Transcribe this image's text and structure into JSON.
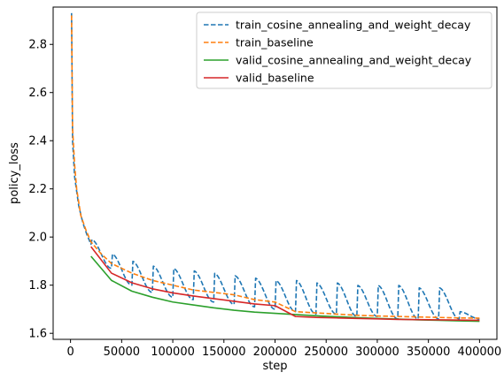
{
  "chart_data": {
    "type": "line",
    "xlabel": "step",
    "ylabel": "policy_loss",
    "xlim": [
      -17000,
      417000
    ],
    "ylim": [
      1.575,
      2.955
    ],
    "xticks": [
      0,
      50000,
      100000,
      150000,
      200000,
      250000,
      300000,
      350000,
      400000
    ],
    "yticks": [
      1.6,
      1.8,
      2.0,
      2.2,
      2.4,
      2.6,
      2.8
    ],
    "grid": false,
    "legend_position": "top-right",
    "series": [
      {
        "name": "train_cosine_annealing_and_weight_decay",
        "color": "#1f77b4",
        "dash": "dashed",
        "kind": "cosine",
        "points": [
          [
            1000,
            2.93
          ],
          [
            2000,
            2.4
          ],
          [
            4000,
            2.25
          ],
          [
            8000,
            2.13
          ],
          [
            12000,
            2.06
          ],
          [
            16000,
            2.01
          ],
          [
            20000,
            1.97
          ]
        ],
        "cosine": {
          "x_start": 20000,
          "x_end": 400000,
          "period": 20000,
          "peaks_x": [
            20000,
            40000,
            60000,
            80000,
            100000,
            120000,
            140000,
            160000,
            180000,
            200000,
            220000,
            240000,
            260000,
            280000,
            300000,
            320000,
            340000,
            360000,
            380000,
            400000
          ],
          "peaks_y": [
            2.11,
            1.99,
            1.93,
            1.9,
            1.88,
            1.87,
            1.86,
            1.85,
            1.84,
            1.83,
            1.82,
            1.82,
            1.81,
            1.81,
            1.8,
            1.8,
            1.8,
            1.79,
            1.79,
            1.69
          ],
          "troughs_y": [
            1.97,
            1.87,
            1.8,
            1.77,
            1.75,
            1.74,
            1.73,
            1.72,
            1.71,
            1.7,
            1.69,
            1.68,
            1.68,
            1.67,
            1.67,
            1.66,
            1.66,
            1.66,
            1.66,
            1.66
          ]
        }
      },
      {
        "name": "train_baseline",
        "color": "#ff7f0e",
        "dash": "dashed",
        "kind": "points",
        "points": [
          [
            1000,
            2.92
          ],
          [
            2000,
            2.45
          ],
          [
            4000,
            2.3
          ],
          [
            6000,
            2.2
          ],
          [
            10000,
            2.09
          ],
          [
            15000,
            2.03
          ],
          [
            20000,
            1.98
          ],
          [
            30000,
            1.93
          ],
          [
            40000,
            1.89
          ],
          [
            60000,
            1.85
          ],
          [
            80000,
            1.82
          ],
          [
            100000,
            1.8
          ],
          [
            120000,
            1.78
          ],
          [
            140000,
            1.77
          ],
          [
            160000,
            1.76
          ],
          [
            180000,
            1.74
          ],
          [
            200000,
            1.73
          ],
          [
            220000,
            1.69
          ],
          [
            240000,
            1.685
          ],
          [
            260000,
            1.68
          ],
          [
            280000,
            1.675
          ],
          [
            300000,
            1.672
          ],
          [
            320000,
            1.67
          ],
          [
            340000,
            1.668
          ],
          [
            360000,
            1.666
          ],
          [
            380000,
            1.664
          ],
          [
            400000,
            1.663
          ]
        ]
      },
      {
        "name": "valid_cosine_annealing_and_weight_decay",
        "color": "#2ca02c",
        "dash": "solid",
        "kind": "points",
        "points": [
          [
            20000,
            1.92
          ],
          [
            40000,
            1.82
          ],
          [
            60000,
            1.775
          ],
          [
            80000,
            1.75
          ],
          [
            100000,
            1.73
          ],
          [
            120000,
            1.718
          ],
          [
            140000,
            1.706
          ],
          [
            160000,
            1.696
          ],
          [
            180000,
            1.688
          ],
          [
            200000,
            1.683
          ],
          [
            220000,
            1.678
          ],
          [
            240000,
            1.673
          ],
          [
            260000,
            1.669
          ],
          [
            280000,
            1.665
          ],
          [
            300000,
            1.662
          ],
          [
            320000,
            1.659
          ],
          [
            340000,
            1.656
          ],
          [
            360000,
            1.654
          ],
          [
            380000,
            1.652
          ],
          [
            400000,
            1.65
          ]
        ]
      },
      {
        "name": "valid_baseline",
        "color": "#d62728",
        "dash": "solid",
        "kind": "points",
        "points": [
          [
            20000,
            1.96
          ],
          [
            40000,
            1.85
          ],
          [
            60000,
            1.81
          ],
          [
            80000,
            1.785
          ],
          [
            100000,
            1.768
          ],
          [
            120000,
            1.755
          ],
          [
            140000,
            1.744
          ],
          [
            160000,
            1.733
          ],
          [
            180000,
            1.722
          ],
          [
            200000,
            1.715
          ],
          [
            220000,
            1.67
          ],
          [
            240000,
            1.666
          ],
          [
            260000,
            1.664
          ],
          [
            280000,
            1.662
          ],
          [
            300000,
            1.66
          ],
          [
            320000,
            1.658
          ],
          [
            340000,
            1.657
          ],
          [
            360000,
            1.656
          ],
          [
            380000,
            1.655
          ],
          [
            400000,
            1.654
          ]
        ]
      }
    ]
  }
}
